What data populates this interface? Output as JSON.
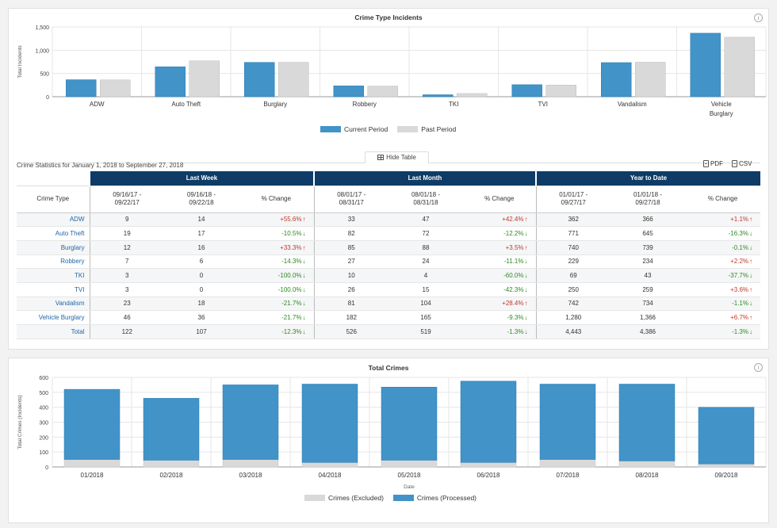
{
  "colors": {
    "current": "#4193c8",
    "past": "#d9d9d9",
    "header_band": "#0e3c66",
    "positive": "#c0392b",
    "negative": "#2e8b22"
  },
  "icons": {
    "info": "info-icon",
    "up": "arrow-up-icon",
    "down": "arrow-down-icon",
    "table": "table-icon",
    "doc": "document-icon"
  },
  "chart1": {
    "info_glyph": "i"
  },
  "chart2": {
    "info_glyph": "i"
  },
  "hide_table": "Hide Table",
  "stats_caption": "Crime Statistics for January 1, 2018 to September 27, 2018",
  "export": {
    "pdf": "PDF",
    "csv": "CSV"
  },
  "table": {
    "groups": [
      "Last Week",
      "Last Month",
      "Year to Date"
    ],
    "crime_type_header": "Crime Type",
    "headers": [
      [
        "09/16/17 -",
        "09/22/17"
      ],
      [
        "09/16/18 -",
        "09/22/18"
      ],
      [
        "% Change",
        ""
      ],
      [
        "08/01/17 -",
        "08/31/17"
      ],
      [
        "08/01/18 -",
        "08/31/18"
      ],
      [
        "% Change",
        ""
      ],
      [
        "01/01/17 -",
        "09/27/17"
      ],
      [
        "01/01/18 -",
        "09/27/18"
      ],
      [
        "% Change",
        ""
      ]
    ],
    "rows": [
      {
        "type": "ADW",
        "cells": [
          "9",
          "14",
          "+55.6%",
          "33",
          "47",
          "+42.4%",
          "362",
          "366",
          "+1.1%"
        ]
      },
      {
        "type": "Auto Theft",
        "cells": [
          "19",
          "17",
          "-10.5%",
          "82",
          "72",
          "-12.2%",
          "771",
          "645",
          "-16.3%"
        ]
      },
      {
        "type": "Burglary",
        "cells": [
          "12",
          "16",
          "+33.3%",
          "85",
          "88",
          "+3.5%",
          "740",
          "739",
          "-0.1%"
        ]
      },
      {
        "type": "Robbery",
        "cells": [
          "7",
          "6",
          "-14.3%",
          "27",
          "24",
          "-11.1%",
          "229",
          "234",
          "+2.2%"
        ]
      },
      {
        "type": "TKI",
        "cells": [
          "3",
          "0",
          "-100.0%",
          "10",
          "4",
          "-60.0%",
          "69",
          "43",
          "-37.7%"
        ]
      },
      {
        "type": "TVI",
        "cells": [
          "3",
          "0",
          "-100.0%",
          "26",
          "15",
          "-42.3%",
          "250",
          "259",
          "+3.6%"
        ]
      },
      {
        "type": "Vandalism",
        "cells": [
          "23",
          "18",
          "-21.7%",
          "81",
          "104",
          "+28.4%",
          "742",
          "734",
          "-1.1%"
        ]
      },
      {
        "type": "Vehicle Burglary",
        "cells": [
          "46",
          "36",
          "-21.7%",
          "182",
          "165",
          "-9.3%",
          "1,280",
          "1,366",
          "+6.7%"
        ]
      },
      {
        "type": "Total",
        "cells": [
          "122",
          "107",
          "-12.3%",
          "526",
          "519",
          "-1.3%",
          "4,443",
          "4,386",
          "-1.3%"
        ]
      }
    ]
  },
  "chart_data": [
    {
      "type": "bar",
      "title": "Crime Type Incidents",
      "xlabel": "",
      "ylabel": "Total Incidents",
      "ylim": [
        0,
        1500
      ],
      "yticks": [
        "0",
        "500",
        "1,000",
        "1,500"
      ],
      "grid": true,
      "legend": "bottom",
      "categories": [
        "ADW",
        "Auto Theft",
        "Burglary",
        "Robbery",
        "TKI",
        "TVI",
        "Vandalism",
        "Vehicle Burglary"
      ],
      "category_lines": [
        [
          "ADW"
        ],
        [
          "Auto Theft"
        ],
        [
          "Burglary"
        ],
        [
          "Robbery"
        ],
        [
          "TKI"
        ],
        [
          "TVI"
        ],
        [
          "Vandalism"
        ],
        [
          "Vehicle",
          "Burglary"
        ]
      ],
      "series": [
        {
          "name": "Current Period",
          "values": [
            366,
            645,
            739,
            234,
            43,
            259,
            734,
            1366
          ]
        },
        {
          "name": "Past Period",
          "values": [
            362,
            771,
            740,
            229,
            69,
            250,
            742,
            1280
          ]
        }
      ]
    },
    {
      "type": "bar",
      "stacked": true,
      "title": "Total Crimes",
      "xlabel": "Date",
      "ylabel": "Total Crimes (Incidents)",
      "ylim": [
        0,
        600
      ],
      "yticks": [
        "0",
        "100",
        "200",
        "300",
        "400",
        "500",
        "600"
      ],
      "grid": true,
      "legend": "bottom",
      "categories": [
        "01/2018",
        "02/2018",
        "03/2018",
        "04/2018",
        "05/2018",
        "06/2018",
        "07/2018",
        "08/2018",
        "09/2018"
      ],
      "series": [
        {
          "name": "Crimes (Excluded)",
          "values": [
            50,
            45,
            50,
            30,
            45,
            30,
            50,
            40,
            20
          ]
        },
        {
          "name": "Crimes (Processed)",
          "values": [
            470,
            415,
            500,
            525,
            490,
            545,
            505,
            515,
            380
          ]
        }
      ]
    }
  ]
}
